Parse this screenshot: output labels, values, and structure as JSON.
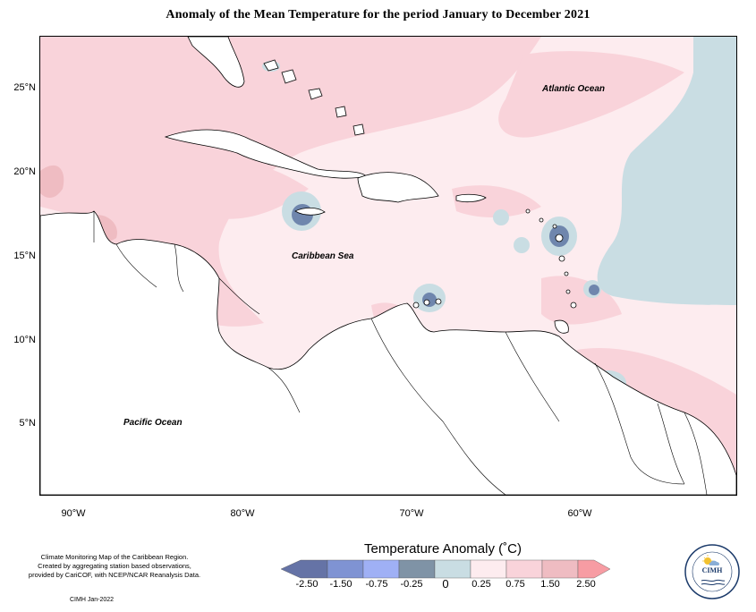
{
  "map": {
    "title": "Anomaly of the Mean Temperature for the period January to December 2021",
    "lat_labels": [
      "25°N",
      "20°N",
      "15°N",
      "10°N",
      "5°N"
    ],
    "lon_labels": [
      "90°W",
      "80°W",
      "70°W",
      "60°W"
    ],
    "ocean_labels": {
      "atlantic": "Atlantic Ocean",
      "caribbean": "Caribbean Sea",
      "pacific": "Pacific Ocean"
    },
    "colors": {
      "land": "#ffffff",
      "coast": "#000000",
      "anomaly_0_025": "#fdecef",
      "anomaly_025_075": "#f9d3da",
      "anomaly_075_150": "#efbcc2",
      "anomaly_neg025_0": "#c9dde3",
      "anomaly_neg075_neg025": "#8ea4b8",
      "anomaly_neg150_neg075": "#6f86ad"
    }
  },
  "notes": {
    "line1": "Climate Monitoring Map of the Caribbean Region.",
    "line2": "Created by aggregating station based observations,",
    "line3": "provided by CariCOF, with NCEP/NCAR Reanalysis Data.",
    "credit": "CIMH Jan-2022"
  },
  "legend": {
    "title": "Temperature Anomaly (˚C)",
    "ticks": [
      "-2.50",
      "-1.50",
      "-0.75",
      "-0.25",
      "0",
      "0.25",
      "0.75",
      "1.50",
      "2.50"
    ],
    "colors": [
      "#6573a6",
      "#7f93d3",
      "#9fb0f5",
      "#7f93a6",
      "#c9dde3",
      "#fdecef",
      "#f9d3da",
      "#efbcc2",
      "#f79ca3"
    ]
  },
  "logo": {
    "text": "CIMH"
  }
}
